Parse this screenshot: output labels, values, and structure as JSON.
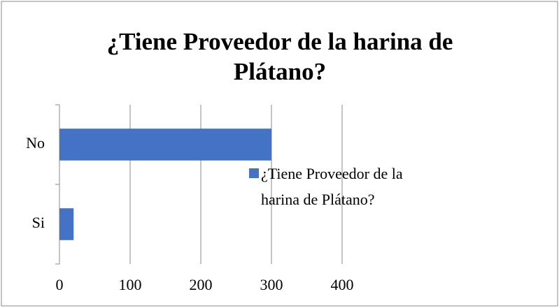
{
  "chart_data": {
    "type": "bar",
    "orientation": "horizontal",
    "title": "¿Tiene Proveedor de la harina de Plátano?",
    "categories": [
      "No",
      "Si"
    ],
    "series": [
      {
        "name": "¿Tiene Proveedor de la harina de Plátano?",
        "color": "#4472c4",
        "values": [
          300,
          20
        ]
      }
    ],
    "xlim": [
      0,
      400
    ],
    "xticks": [
      0,
      100,
      200,
      300,
      400
    ],
    "grid": true,
    "legend": "right"
  }
}
